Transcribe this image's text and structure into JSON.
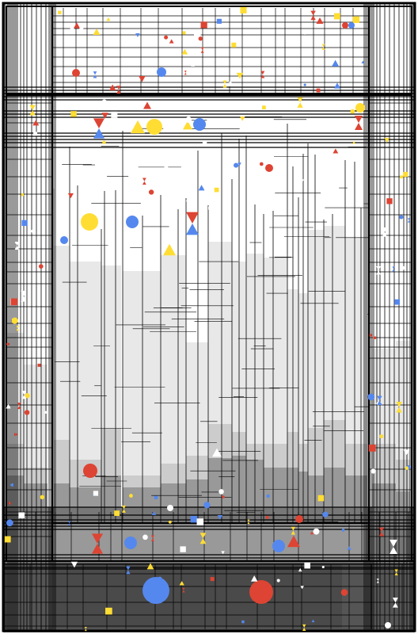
{
  "palette": {
    "red": "#dd4433",
    "blue": "#5588ee",
    "yellow": "#ffdd33",
    "white": "#ffffff",
    "line": "#000000",
    "gray_light": "#e8e8e8",
    "gray_mid": "#cccccc",
    "gray_dark": "#999999",
    "gray_deeper": "#777777",
    "gray_darkest": "#555555"
  },
  "shapes": {
    "large": [
      {
        "kind": "circle",
        "color": "blue",
        "label": "large-blue-circle"
      },
      {
        "kind": "circle",
        "color": "red",
        "label": "large-red-circle"
      },
      {
        "kind": "circle",
        "color": "yellow",
        "label": "yellow-circle-top"
      },
      {
        "kind": "circle",
        "color": "yellow",
        "label": "yellow-circle-mid"
      },
      {
        "kind": "circle",
        "color": "blue",
        "label": "blue-circle-top"
      },
      {
        "kind": "circle",
        "color": "blue",
        "label": "blue-circle-mid"
      },
      {
        "kind": "circle",
        "color": "red",
        "label": "red-circle-lower"
      },
      {
        "kind": "circle",
        "color": "blue",
        "label": "blue-circle-lower-left"
      },
      {
        "kind": "circle",
        "color": "blue",
        "label": "blue-circle-lower-right"
      },
      {
        "kind": "triangle",
        "color": "yellow",
        "label": "yellow-triangle-top"
      },
      {
        "kind": "triangle",
        "color": "yellow",
        "label": "yellow-triangle-mid"
      },
      {
        "kind": "triangle",
        "color": "red",
        "label": "red-triangle-lower"
      },
      {
        "kind": "triangle",
        "color": "white",
        "label": "white-triangle-lower"
      },
      {
        "kind": "hourglass",
        "color": "blue",
        "label": "blue-hourglass-top"
      },
      {
        "kind": "hourglass",
        "color": "blue",
        "label": "blue-hourglass-mid"
      },
      {
        "kind": "hourglass",
        "color": "red",
        "label": "red-hourglass-lower"
      }
    ]
  }
}
